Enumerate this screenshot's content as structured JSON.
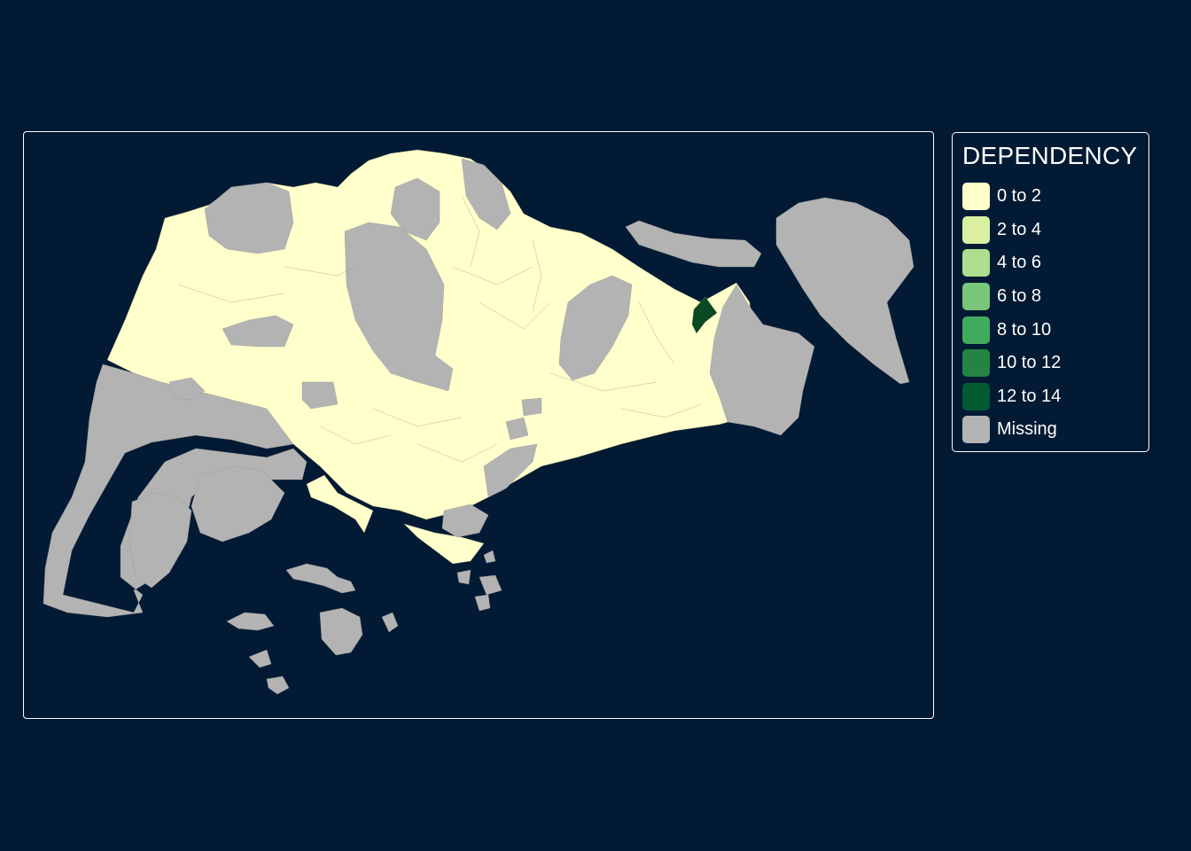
{
  "legend": {
    "title": "DEPENDENCY",
    "items": [
      {
        "label": "0 to 2",
        "color": "#ffffcc"
      },
      {
        "label": "2 to 4",
        "color": "#d9f0a3"
      },
      {
        "label": "4 to 6",
        "color": "#addd8e"
      },
      {
        "label": "6 to 8",
        "color": "#78c679"
      },
      {
        "label": "8 to 10",
        "color": "#41ab5d"
      },
      {
        "label": "10 to 12",
        "color": "#238443"
      },
      {
        "label": "12 to 14",
        "color": "#005a32"
      },
      {
        "label": "Missing",
        "color": "#b3b3b3"
      }
    ]
  },
  "colors": {
    "background": "#021a33",
    "frame": "#ffffff",
    "boundary": "#8a8a6a",
    "land_low": "#ffffcc",
    "land_high": "#0a4a23",
    "missing": "#b3b3b3"
  }
}
